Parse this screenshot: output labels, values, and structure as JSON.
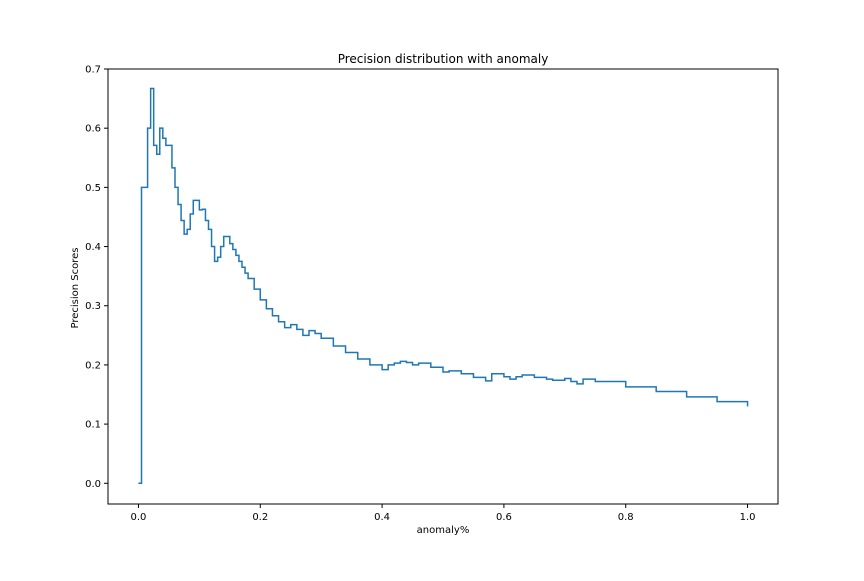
{
  "chart_data": {
    "type": "line",
    "title": "Precision distribution with anomaly",
    "xlabel": "anomaly%",
    "ylabel": "Precision Scores",
    "xlim": [
      -0.05,
      1.05
    ],
    "ylim": [
      -0.035,
      0.7
    ],
    "xticks": [
      {
        "value": 0.0,
        "label": "0.0"
      },
      {
        "value": 0.2,
        "label": "0.2"
      },
      {
        "value": 0.4,
        "label": "0.4"
      },
      {
        "value": 0.6,
        "label": "0.6"
      },
      {
        "value": 0.8,
        "label": "0.8"
      },
      {
        "value": 1.0,
        "label": "1.0"
      }
    ],
    "yticks": [
      {
        "value": 0.0,
        "label": "0.0"
      },
      {
        "value": 0.1,
        "label": "0.1"
      },
      {
        "value": 0.2,
        "label": "0.2"
      },
      {
        "value": 0.3,
        "label": "0.3"
      },
      {
        "value": 0.4,
        "label": "0.4"
      },
      {
        "value": 0.5,
        "label": "0.5"
      },
      {
        "value": 0.6,
        "label": "0.6"
      },
      {
        "value": 0.7,
        "label": "0.7"
      }
    ],
    "grid": false,
    "step": true,
    "line_color": "#1f77b4",
    "series": [
      {
        "x": [
          0.0,
          0.005,
          0.01,
          0.015,
          0.02,
          0.025,
          0.03,
          0.035,
          0.04,
          0.045,
          0.05,
          0.055,
          0.06,
          0.065,
          0.07,
          0.075,
          0.08,
          0.085,
          0.09,
          0.095,
          0.1,
          0.105,
          0.11,
          0.115,
          0.12,
          0.125,
          0.13,
          0.135,
          0.14,
          0.145,
          0.15,
          0.155,
          0.16,
          0.165,
          0.17,
          0.175,
          0.18,
          0.19,
          0.2,
          0.21,
          0.22,
          0.23,
          0.24,
          0.25,
          0.26,
          0.27,
          0.28,
          0.29,
          0.3,
          0.32,
          0.34,
          0.36,
          0.38,
          0.4,
          0.41,
          0.42,
          0.43,
          0.44,
          0.45,
          0.46,
          0.48,
          0.5,
          0.51,
          0.53,
          0.55,
          0.57,
          0.58,
          0.6,
          0.61,
          0.62,
          0.63,
          0.65,
          0.67,
          0.68,
          0.7,
          0.71,
          0.72,
          0.73,
          0.75,
          0.8,
          0.85,
          0.9,
          0.95,
          1.0
        ],
        "y": [
          0.0,
          0.5,
          0.5,
          0.6,
          0.667,
          0.571,
          0.556,
          0.6,
          0.583,
          0.571,
          0.571,
          0.533,
          0.5,
          0.471,
          0.444,
          0.421,
          0.429,
          0.455,
          0.478,
          0.478,
          0.462,
          0.463,
          0.444,
          0.429,
          0.4,
          0.375,
          0.382,
          0.4,
          0.417,
          0.417,
          0.405,
          0.395,
          0.385,
          0.375,
          0.365,
          0.355,
          0.346,
          0.328,
          0.31,
          0.295,
          0.283,
          0.273,
          0.263,
          0.268,
          0.26,
          0.25,
          0.258,
          0.253,
          0.245,
          0.232,
          0.221,
          0.21,
          0.2,
          0.192,
          0.2,
          0.203,
          0.206,
          0.204,
          0.2,
          0.203,
          0.196,
          0.188,
          0.19,
          0.185,
          0.179,
          0.173,
          0.185,
          0.18,
          0.176,
          0.18,
          0.183,
          0.179,
          0.176,
          0.174,
          0.177,
          0.172,
          0.168,
          0.176,
          0.172,
          0.163,
          0.155,
          0.146,
          0.138,
          0.13
        ]
      }
    ]
  }
}
